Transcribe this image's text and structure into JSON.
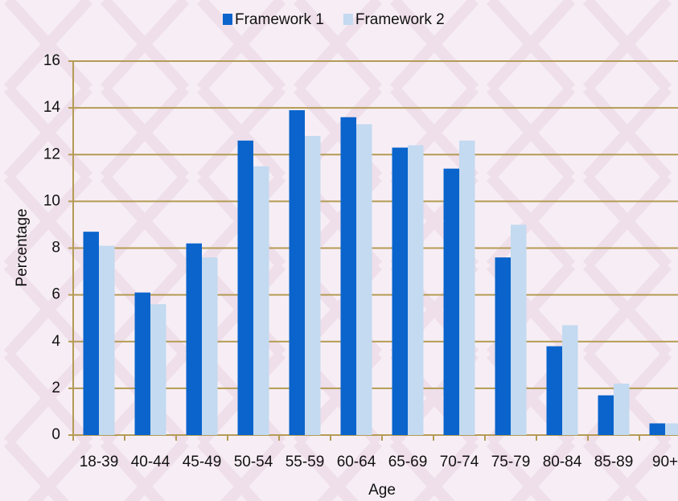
{
  "chart_data": {
    "type": "bar",
    "categories": [
      "18-39",
      "40-44",
      "45-49",
      "50-54",
      "55-59",
      "60-64",
      "65-69",
      "70-74",
      "75-79",
      "80-84",
      "85-89",
      "90+"
    ],
    "series": [
      {
        "name": "Framework 1",
        "color": "#0a64cc",
        "values": [
          8.7,
          6.1,
          8.2,
          12.6,
          13.9,
          13.6,
          12.3,
          11.4,
          7.6,
          3.8,
          1.7,
          0.5
        ]
      },
      {
        "name": "Framework 2",
        "color": "#c3daf0",
        "values": [
          8.1,
          5.6,
          7.6,
          11.5,
          12.8,
          13.3,
          12.4,
          12.6,
          9.0,
          4.7,
          2.2,
          0.5
        ]
      }
    ],
    "x_label": "Age",
    "y_label": "Percentage",
    "ylim": [
      0,
      16
    ],
    "yticks": [
      0,
      2,
      4,
      6,
      8,
      10,
      12,
      14,
      16
    ],
    "grid": true,
    "legend": "top"
  }
}
